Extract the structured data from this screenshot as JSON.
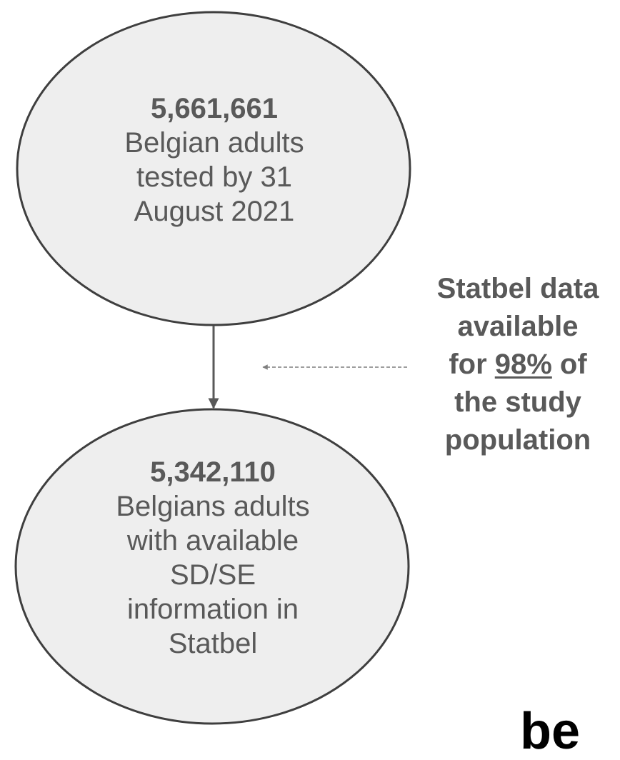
{
  "colors": {
    "node_fill": "#eeeeee",
    "node_stroke": "#3f3f3f",
    "text": "#595959",
    "arrow": "#595959",
    "dashed_arrow": "#7f7f7f"
  },
  "nodes": {
    "top": {
      "count": "5,661,661",
      "description": "Belgian adults\ntested by 31\nAugust 2021"
    },
    "bottom": {
      "count": "5,342,110",
      "description": "Belgians adults\nwith available\nSD/SE\ninformation in\nStatbel"
    }
  },
  "side_note": {
    "line1": "Statbel data",
    "line2": "available",
    "line3_before": "for ",
    "line3_highlight": "98%",
    "line3_after": " of",
    "line4": "the study",
    "line5": "population"
  },
  "logo_text": "be"
}
